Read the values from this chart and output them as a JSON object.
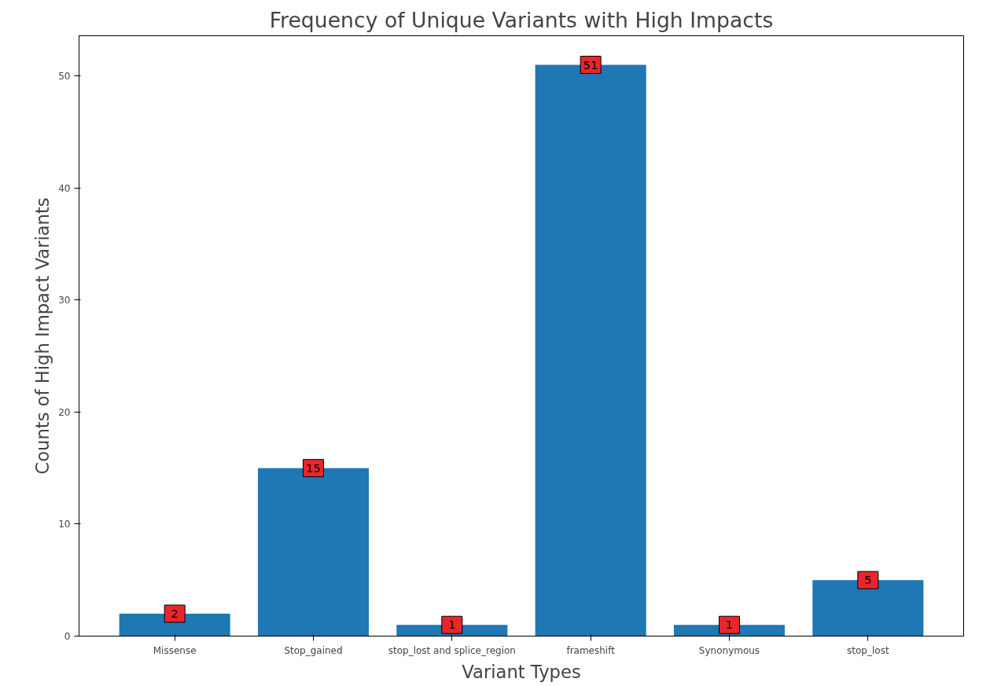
{
  "chart_data": {
    "type": "bar",
    "title": "Frequency of Unique Variants with High Impacts",
    "xlabel": "Variant Types",
    "ylabel": "Counts of High Impact Variants",
    "categories": [
      "Missense",
      "Stop_gained",
      "stop_lost and splice_region",
      "frameshift",
      "Synonymous",
      "stop_lost"
    ],
    "values": [
      2,
      15,
      1,
      51,
      1,
      5
    ],
    "color": "#1f77b4",
    "ylim": [
      0,
      53.6
    ],
    "yticks": [
      0,
      10,
      20,
      30,
      40,
      50
    ],
    "grid": false,
    "data_labels": true
  }
}
